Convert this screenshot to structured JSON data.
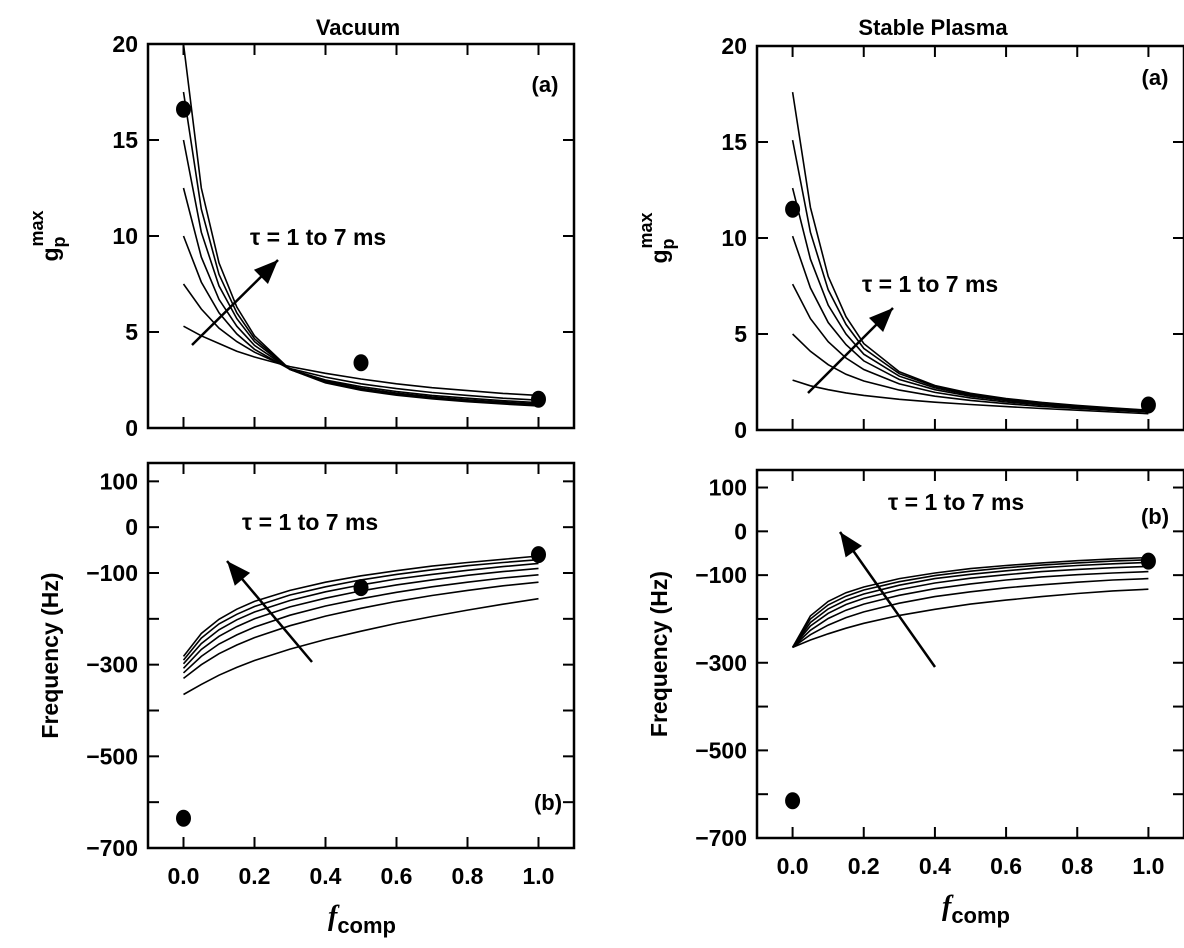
{
  "columns": [
    {
      "title": "Vacuum"
    },
    {
      "title": "Stable Plasma"
    }
  ],
  "xlabel": {
    "main": "f",
    "sub": "comp"
  },
  "chart_data": [
    {
      "type": "line",
      "column": "Vacuum",
      "panel_tag": "(a)",
      "ylabel": {
        "main": "g",
        "sub": "p",
        "sup": "max"
      },
      "xlim": [
        -0.1,
        1.1
      ],
      "ylim": [
        0,
        20
      ],
      "xticks": [
        0,
        0.2,
        0.4,
        0.6,
        0.8,
        1.0
      ],
      "xtick_labels": [],
      "yticks": [
        0,
        5,
        10,
        15,
        20
      ],
      "ytick_labels": [
        "0",
        "5",
        "10",
        "15",
        "20"
      ],
      "annotation": "τ = 1 to 7 ms",
      "curves": [
        {
          "x": [
            0,
            0.05,
            0.1,
            0.15,
            0.2,
            0.3,
            0.4,
            0.5,
            0.6,
            0.7,
            0.8,
            0.9,
            1.0
          ],
          "y": [
            5.3,
            4.8,
            4.4,
            4.0,
            3.7,
            3.2,
            2.85,
            2.55,
            2.3,
            2.1,
            1.95,
            1.8,
            1.7
          ]
        },
        {
          "x": [
            0,
            0.05,
            0.1,
            0.15,
            0.2,
            0.3,
            0.4,
            0.5,
            0.6,
            0.7,
            0.8,
            0.9,
            1.0
          ],
          "y": [
            7.5,
            6.2,
            5.2,
            4.5,
            3.95,
            3.1,
            2.65,
            2.3,
            2.05,
            1.85,
            1.7,
            1.55,
            1.45
          ]
        },
        {
          "x": [
            0,
            0.05,
            0.1,
            0.15,
            0.2,
            0.3,
            0.4,
            0.5,
            0.6,
            0.7,
            0.8,
            0.9,
            1.0
          ],
          "y": [
            10.0,
            7.6,
            6.0,
            4.9,
            4.1,
            3.05,
            2.5,
            2.15,
            1.9,
            1.7,
            1.55,
            1.42,
            1.32
          ]
        },
        {
          "x": [
            0,
            0.05,
            0.1,
            0.15,
            0.2,
            0.3,
            0.4,
            0.5,
            0.6,
            0.7,
            0.8,
            0.9,
            1.0
          ],
          "y": [
            12.5,
            8.9,
            6.7,
            5.3,
            4.3,
            3.05,
            2.45,
            2.07,
            1.82,
            1.62,
            1.47,
            1.35,
            1.25
          ]
        },
        {
          "x": [
            0,
            0.05,
            0.1,
            0.15,
            0.2,
            0.3,
            0.4,
            0.5,
            0.6,
            0.7,
            0.8,
            0.9,
            1.0
          ],
          "y": [
            15.0,
            10.2,
            7.4,
            5.7,
            4.5,
            3.05,
            2.4,
            2.02,
            1.77,
            1.57,
            1.42,
            1.3,
            1.2
          ]
        },
        {
          "x": [
            0,
            0.05,
            0.1,
            0.15,
            0.2,
            0.3,
            0.4,
            0.5,
            0.6,
            0.7,
            0.8,
            0.9,
            1.0
          ],
          "y": [
            17.5,
            11.4,
            8.0,
            6.0,
            4.65,
            3.05,
            2.37,
            1.99,
            1.74,
            1.54,
            1.39,
            1.27,
            1.17
          ]
        },
        {
          "x": [
            0,
            0.05,
            0.1,
            0.15,
            0.2,
            0.3,
            0.4,
            0.5,
            0.6,
            0.7,
            0.8,
            0.9,
            1.0
          ],
          "y": [
            20.0,
            12.5,
            8.6,
            6.3,
            4.8,
            3.05,
            2.35,
            1.97,
            1.71,
            1.52,
            1.37,
            1.25,
            1.15
          ]
        }
      ],
      "points": [
        {
          "x": 0.0,
          "y": 16.6
        },
        {
          "x": 0.5,
          "y": 3.4
        },
        {
          "x": 1.0,
          "y": 1.5
        }
      ]
    },
    {
      "type": "line",
      "column": "Vacuum",
      "panel_tag": "(b)",
      "ylabel": {
        "main": "Frequency (Hz)"
      },
      "xlim": [
        -0.1,
        1.1
      ],
      "ylim": [
        -700,
        140
      ],
      "xticks": [
        0,
        0.2,
        0.4,
        0.6,
        0.8,
        1.0
      ],
      "xtick_labels": [
        "0.0",
        "0.2",
        "0.4",
        "0.6",
        "0.8",
        "1.0"
      ],
      "yticks": [
        -700,
        -600,
        -500,
        -400,
        -300,
        -200,
        -100,
        0,
        100
      ],
      "ytick_labels": [
        "−700",
        "",
        "−500",
        "",
        "−300",
        "",
        "−100",
        "0",
        "100"
      ],
      "annotation": "τ = 1 to 7 ms",
      "curves": [
        {
          "x": [
            0,
            0.05,
            0.1,
            0.15,
            0.2,
            0.3,
            0.4,
            0.5,
            0.6,
            0.7,
            0.8,
            0.9,
            1.0
          ],
          "y": [
            -365,
            -343,
            -323,
            -306,
            -291,
            -266,
            -245,
            -227,
            -210,
            -195,
            -181,
            -168,
            -156
          ]
        },
        {
          "x": [
            0,
            0.05,
            0.1,
            0.15,
            0.2,
            0.3,
            0.4,
            0.5,
            0.6,
            0.7,
            0.8,
            0.9,
            1.0
          ],
          "y": [
            -330,
            -300,
            -276,
            -257,
            -241,
            -215,
            -194,
            -177,
            -162,
            -149,
            -138,
            -128,
            -120
          ]
        },
        {
          "x": [
            0,
            0.05,
            0.1,
            0.15,
            0.2,
            0.3,
            0.4,
            0.5,
            0.6,
            0.7,
            0.8,
            0.9,
            1.0
          ],
          "y": [
            -318,
            -282,
            -255,
            -235,
            -218,
            -192,
            -172,
            -156,
            -142,
            -130,
            -120,
            -111,
            -104
          ]
        },
        {
          "x": [
            0,
            0.05,
            0.1,
            0.15,
            0.2,
            0.3,
            0.4,
            0.5,
            0.6,
            0.7,
            0.8,
            0.9,
            1.0
          ],
          "y": [
            -308,
            -267,
            -238,
            -217,
            -200,
            -174,
            -155,
            -139,
            -126,
            -115,
            -105,
            -97,
            -90
          ]
        },
        {
          "x": [
            0,
            0.05,
            0.1,
            0.15,
            0.2,
            0.3,
            0.4,
            0.5,
            0.6,
            0.7,
            0.8,
            0.9,
            1.0
          ],
          "y": [
            -298,
            -254,
            -224,
            -202,
            -185,
            -160,
            -141,
            -126,
            -113,
            -103,
            -94,
            -86,
            -79
          ]
        },
        {
          "x": [
            0,
            0.05,
            0.1,
            0.15,
            0.2,
            0.3,
            0.4,
            0.5,
            0.6,
            0.7,
            0.8,
            0.9,
            1.0
          ],
          "y": [
            -290,
            -242,
            -211,
            -190,
            -173,
            -148,
            -130,
            -115,
            -103,
            -93,
            -84,
            -77,
            -71
          ]
        },
        {
          "x": [
            0,
            0.05,
            0.1,
            0.15,
            0.2,
            0.3,
            0.4,
            0.5,
            0.6,
            0.7,
            0.8,
            0.9,
            1.0
          ],
          "y": [
            -282,
            -232,
            -201,
            -179,
            -162,
            -138,
            -120,
            -106,
            -95,
            -85,
            -77,
            -70,
            -63
          ]
        }
      ],
      "points": [
        {
          "x": 0.0,
          "y": -635
        },
        {
          "x": 0.5,
          "y": -132
        },
        {
          "x": 1.0,
          "y": -60
        }
      ]
    },
    {
      "type": "line",
      "column": "Stable Plasma",
      "panel_tag": "(a)",
      "ylabel": {
        "main": "g",
        "sub": "p",
        "sup": "max"
      },
      "xlim": [
        -0.1,
        1.1
      ],
      "ylim": [
        0,
        20
      ],
      "xticks": [
        0,
        0.2,
        0.4,
        0.6,
        0.8,
        1.0
      ],
      "xtick_labels": [],
      "yticks": [
        0,
        5,
        10,
        15,
        20
      ],
      "ytick_labels": [
        "0",
        "5",
        "10",
        "15",
        "20"
      ],
      "annotation": "τ = 1 to 7 ms",
      "curves": [
        {
          "x": [
            0,
            0.05,
            0.1,
            0.15,
            0.2,
            0.3,
            0.4,
            0.5,
            0.6,
            0.7,
            0.8,
            0.9,
            1.0
          ],
          "y": [
            2.6,
            2.3,
            2.1,
            1.93,
            1.8,
            1.6,
            1.45,
            1.33,
            1.22,
            1.12,
            1.03,
            0.94,
            0.85
          ]
        },
        {
          "x": [
            0,
            0.05,
            0.1,
            0.15,
            0.2,
            0.3,
            0.4,
            0.5,
            0.6,
            0.7,
            0.8,
            0.9,
            1.0
          ],
          "y": [
            5.0,
            4.1,
            3.4,
            2.9,
            2.55,
            2.08,
            1.76,
            1.54,
            1.37,
            1.23,
            1.12,
            1.02,
            0.93
          ]
        },
        {
          "x": [
            0,
            0.05,
            0.1,
            0.15,
            0.2,
            0.3,
            0.4,
            0.5,
            0.6,
            0.7,
            0.8,
            0.9,
            1.0
          ],
          "y": [
            7.6,
            5.8,
            4.6,
            3.75,
            3.15,
            2.4,
            1.96,
            1.67,
            1.46,
            1.3,
            1.17,
            1.06,
            0.97
          ]
        },
        {
          "x": [
            0,
            0.05,
            0.1,
            0.15,
            0.2,
            0.3,
            0.4,
            0.5,
            0.6,
            0.7,
            0.8,
            0.9,
            1.0
          ],
          "y": [
            10.1,
            7.4,
            5.6,
            4.45,
            3.6,
            2.63,
            2.1,
            1.76,
            1.53,
            1.35,
            1.21,
            1.09,
            0.99
          ]
        },
        {
          "x": [
            0,
            0.05,
            0.1,
            0.15,
            0.2,
            0.3,
            0.4,
            0.5,
            0.6,
            0.7,
            0.8,
            0.9,
            1.0
          ],
          "y": [
            12.6,
            8.9,
            6.5,
            5.0,
            3.95,
            2.8,
            2.2,
            1.83,
            1.58,
            1.39,
            1.24,
            1.11,
            1.01
          ]
        },
        {
          "x": [
            0,
            0.05,
            0.1,
            0.15,
            0.2,
            0.3,
            0.4,
            0.5,
            0.6,
            0.7,
            0.8,
            0.9,
            1.0
          ],
          "y": [
            15.1,
            10.3,
            7.3,
            5.5,
            4.25,
            2.93,
            2.27,
            1.88,
            1.61,
            1.42,
            1.26,
            1.13,
            1.02
          ]
        },
        {
          "x": [
            0,
            0.05,
            0.1,
            0.15,
            0.2,
            0.3,
            0.4,
            0.5,
            0.6,
            0.7,
            0.8,
            0.9,
            1.0
          ],
          "y": [
            17.6,
            11.6,
            8.0,
            5.9,
            4.5,
            3.03,
            2.32,
            1.91,
            1.64,
            1.44,
            1.28,
            1.15,
            1.03
          ]
        }
      ],
      "points": [
        {
          "x": 0.0,
          "y": 11.5
        },
        {
          "x": 1.0,
          "y": 1.3
        }
      ]
    },
    {
      "type": "line",
      "column": "Stable Plasma",
      "panel_tag": "(b)",
      "ylabel": {
        "main": "Frequency (Hz)"
      },
      "xlim": [
        -0.1,
        1.1
      ],
      "ylim": [
        -700,
        140
      ],
      "xticks": [
        0,
        0.2,
        0.4,
        0.6,
        0.8,
        1.0
      ],
      "xtick_labels": [
        "0.0",
        "0.2",
        "0.4",
        "0.6",
        "0.8",
        "1.0"
      ],
      "yticks": [
        -700,
        -600,
        -500,
        -400,
        -300,
        -200,
        -100,
        0,
        100
      ],
      "ytick_labels": [
        "−700",
        "",
        "−500",
        "",
        "−300",
        "",
        "−100",
        "0",
        "100"
      ],
      "annotation": "τ = 1 to 7 ms",
      "curves": [
        {
          "x": [
            0,
            0.05,
            0.1,
            0.15,
            0.2,
            0.3,
            0.4,
            0.5,
            0.6,
            0.7,
            0.8,
            0.9,
            1.0
          ],
          "y": [
            -265,
            -248,
            -234,
            -221,
            -210,
            -192,
            -178,
            -166,
            -157,
            -149,
            -142,
            -136,
            -132
          ]
        },
        {
          "x": [
            0,
            0.05,
            0.1,
            0.15,
            0.2,
            0.3,
            0.4,
            0.5,
            0.6,
            0.7,
            0.8,
            0.9,
            1.0
          ],
          "y": [
            -265,
            -236,
            -214,
            -197,
            -184,
            -164,
            -149,
            -138,
            -129,
            -122,
            -116,
            -111,
            -108
          ]
        },
        {
          "x": [
            0,
            0.05,
            0.1,
            0.15,
            0.2,
            0.3,
            0.4,
            0.5,
            0.6,
            0.7,
            0.8,
            0.9,
            1.0
          ],
          "y": [
            -265,
            -226,
            -199,
            -180,
            -166,
            -146,
            -131,
            -120,
            -111,
            -104,
            -99,
            -95,
            -92
          ]
        },
        {
          "x": [
            0,
            0.05,
            0.1,
            0.15,
            0.2,
            0.3,
            0.4,
            0.5,
            0.6,
            0.7,
            0.8,
            0.9,
            1.0
          ],
          "y": [
            -265,
            -216,
            -187,
            -167,
            -153,
            -133,
            -118,
            -107,
            -99,
            -92,
            -87,
            -83,
            -80
          ]
        },
        {
          "x": [
            0,
            0.05,
            0.1,
            0.15,
            0.2,
            0.3,
            0.4,
            0.5,
            0.6,
            0.7,
            0.8,
            0.9,
            1.0
          ],
          "y": [
            -265,
            -208,
            -177,
            -157,
            -143,
            -123,
            -108,
            -98,
            -90,
            -83,
            -78,
            -74,
            -71
          ]
        },
        {
          "x": [
            0,
            0.05,
            0.1,
            0.15,
            0.2,
            0.3,
            0.4,
            0.5,
            0.6,
            0.7,
            0.8,
            0.9,
            1.0
          ],
          "y": [
            -265,
            -200,
            -168,
            -148,
            -134,
            -115,
            -101,
            -91,
            -83,
            -77,
            -72,
            -68,
            -65
          ]
        },
        {
          "x": [
            0,
            0.05,
            0.1,
            0.15,
            0.2,
            0.3,
            0.4,
            0.5,
            0.6,
            0.7,
            0.8,
            0.9,
            1.0
          ],
          "y": [
            -265,
            -193,
            -160,
            -140,
            -127,
            -108,
            -95,
            -85,
            -78,
            -72,
            -67,
            -63,
            -60
          ]
        }
      ],
      "points": [
        {
          "x": 0.0,
          "y": -615
        },
        {
          "x": 1.0,
          "y": -68
        }
      ]
    }
  ]
}
